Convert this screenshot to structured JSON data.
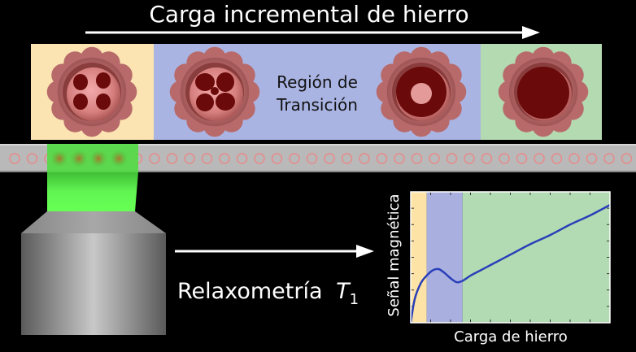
{
  "diagram": {
    "title": "Carga incremental de hierro",
    "transition_label_line1": "Región de",
    "transition_label_line2": "Transición",
    "relaxometry_label": "Relaxometría",
    "relaxometry_symbol": "T",
    "relaxometry_subscript": "1",
    "plot": {
      "ylabel": "Señal magnética",
      "xlabel": "Carga de hierro"
    },
    "colors": {
      "background": "#000000",
      "region_low": "#fbe3b2",
      "region_transition": "#aab4e3",
      "region_high": "#b4dab2",
      "plot_low": "#fde3a6",
      "plot_transition": "#a9b0e0",
      "plot_high": "#b3dbb3",
      "curve": "#2a3fb8",
      "laser": "#66ff55",
      "protein_shell": "#b86a6a",
      "iron_core": "#6b0a0a"
    }
  },
  "chart_data": {
    "type": "line",
    "title": "",
    "xlabel": "Carga de hierro",
    "ylabel": "Señal magnética",
    "x": [
      0.0,
      0.02,
      0.05,
      0.08,
      0.11,
      0.14,
      0.17,
      0.2,
      0.23,
      0.26,
      0.3,
      0.35,
      0.4,
      0.5,
      0.6,
      0.7,
      0.8,
      0.9,
      1.0
    ],
    "series": [
      {
        "values": [
          0.0,
          0.18,
          0.3,
          0.36,
          0.4,
          0.41,
          0.38,
          0.34,
          0.31,
          0.32,
          0.36,
          0.4,
          0.44,
          0.52,
          0.6,
          0.67,
          0.75,
          0.82,
          0.9
        ]
      }
    ],
    "regions": [
      {
        "name": "low",
        "from": 0.0,
        "to": 0.08
      },
      {
        "name": "transition",
        "from": 0.08,
        "to": 0.26
      },
      {
        "name": "high",
        "from": 0.26,
        "to": 1.0
      }
    ],
    "xlim": [
      0,
      1
    ],
    "ylim": [
      0,
      1
    ],
    "grid": false
  }
}
